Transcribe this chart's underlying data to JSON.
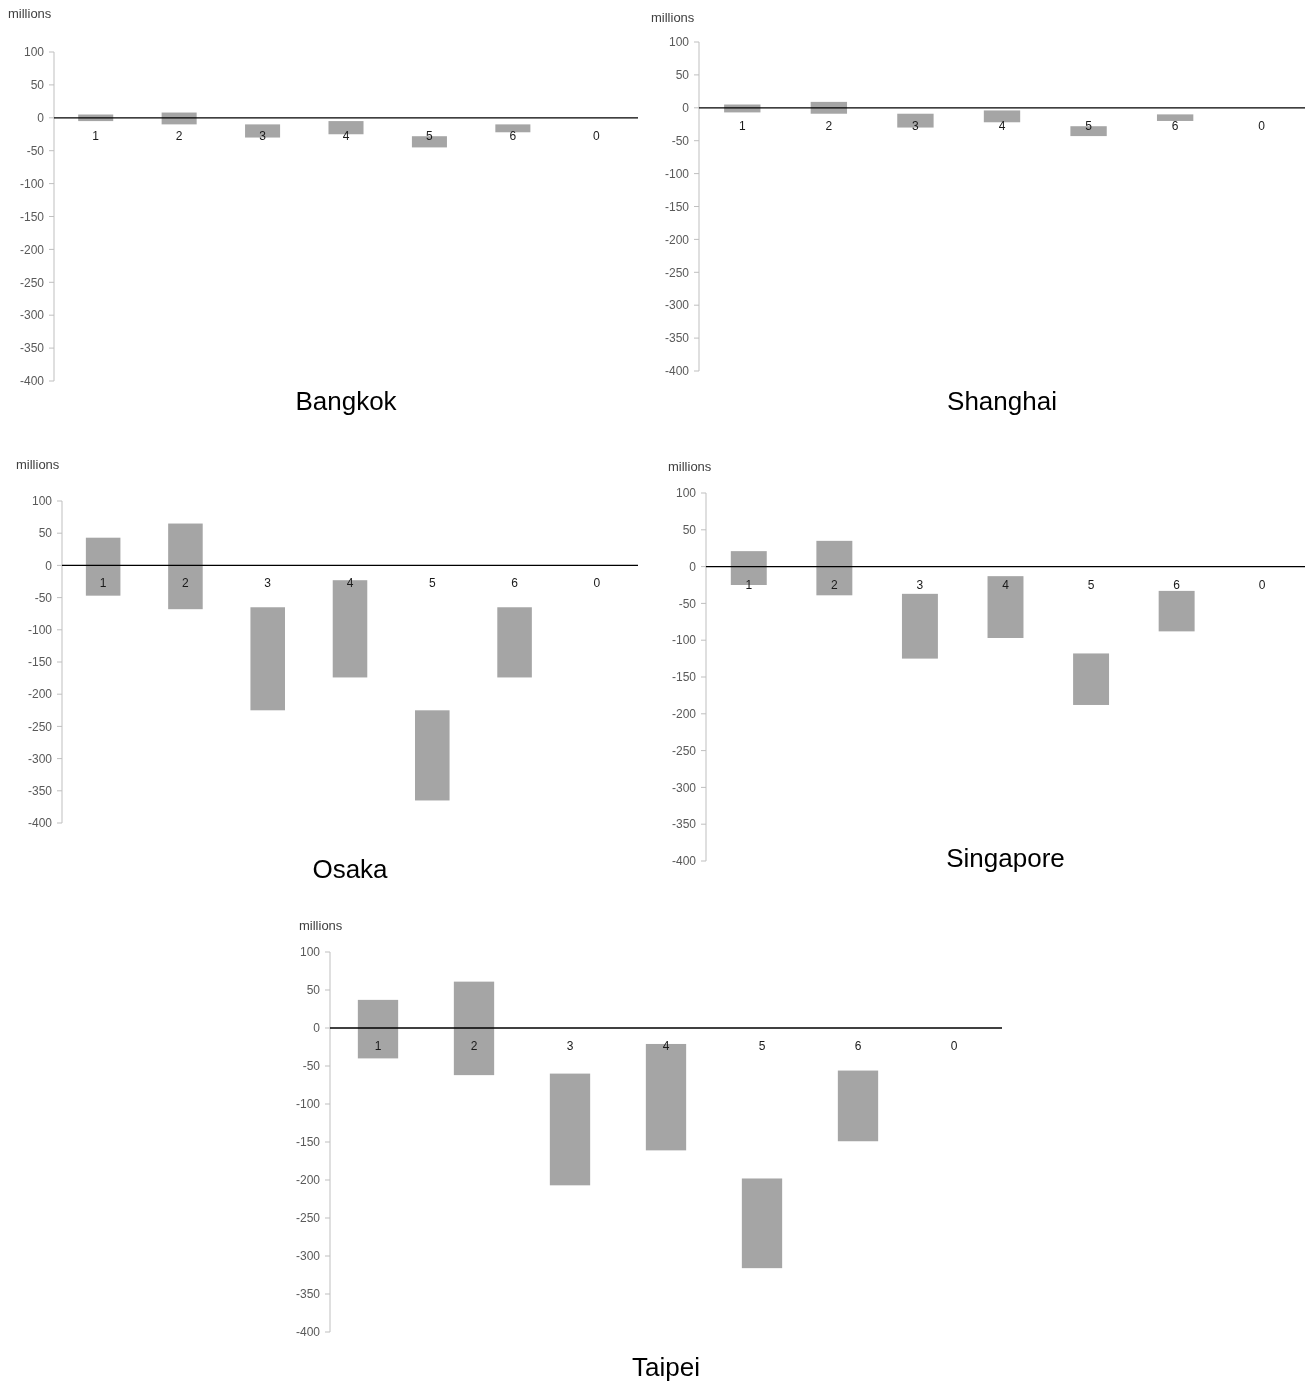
{
  "chart_data": [
    {
      "type": "bar",
      "title": "Bangkok",
      "ylabel": "millions",
      "categories": [
        "1",
        "2",
        "3",
        "4",
        "5",
        "6",
        "0"
      ],
      "base": [
        -5,
        -10,
        -30,
        -25,
        -45,
        -22,
        null
      ],
      "values": [
        10,
        18,
        20,
        20,
        17,
        12,
        null
      ],
      "color": "#a5a5a5",
      "ylim": [
        -400,
        100
      ],
      "yticks": [
        -400,
        -350,
        -300,
        -250,
        -200,
        -150,
        -100,
        -50,
        0,
        50,
        100
      ]
    },
    {
      "type": "bar",
      "title": "Shanghai",
      "ylabel": "millions",
      "categories": [
        "1",
        "2",
        "3",
        "4",
        "5",
        "6",
        "0"
      ],
      "base": [
        -7,
        -9,
        -30,
        -22,
        -43,
        -20,
        null
      ],
      "values": [
        12,
        18,
        21,
        18,
        15,
        10,
        null
      ],
      "color": "#a5a5a5",
      "ylim": [
        -400,
        100
      ],
      "yticks": [
        -400,
        -350,
        -300,
        -250,
        -200,
        -150,
        -100,
        -50,
        0,
        50,
        100
      ]
    },
    {
      "type": "bar",
      "title": "Osaka",
      "ylabel": "millions",
      "categories": [
        "1",
        "2",
        "3",
        "4",
        "5",
        "6",
        "0"
      ],
      "base": [
        -47,
        -68,
        -225,
        -174,
        -365,
        -174,
        null
      ],
      "values": [
        90,
        133,
        160,
        151,
        140,
        109,
        null
      ],
      "color": "#a5a5a5",
      "ylim": [
        -400,
        100
      ],
      "yticks": [
        -400,
        -350,
        -300,
        -250,
        -200,
        -150,
        -100,
        -50,
        0,
        50,
        100
      ]
    },
    {
      "type": "bar",
      "title": "Singapore",
      "ylabel": "millions",
      "categories": [
        "1",
        "2",
        "3",
        "4",
        "5",
        "6",
        "0"
      ],
      "base": [
        -25,
        -39,
        -125,
        -97,
        -188,
        -88,
        null
      ],
      "values": [
        46,
        74,
        88,
        84,
        70,
        55,
        null
      ],
      "color": "#a5a5a5",
      "ylim": [
        -400,
        100
      ],
      "yticks": [
        -400,
        -350,
        -300,
        -250,
        -200,
        -150,
        -100,
        -50,
        0,
        50,
        100
      ]
    },
    {
      "type": "bar",
      "title": "Taipei",
      "ylabel": "millions",
      "categories": [
        "1",
        "2",
        "3",
        "4",
        "5",
        "6",
        "0"
      ],
      "base": [
        -40,
        -62,
        -207,
        -161,
        -316,
        -149,
        null
      ],
      "values": [
        77,
        123,
        147,
        140,
        118,
        93,
        null
      ],
      "color": "#a5a5a5",
      "ylim": [
        -400,
        100
      ],
      "yticks": [
        -400,
        -350,
        -300,
        -250,
        -200,
        -150,
        -100,
        -50,
        0,
        50,
        100
      ]
    }
  ]
}
